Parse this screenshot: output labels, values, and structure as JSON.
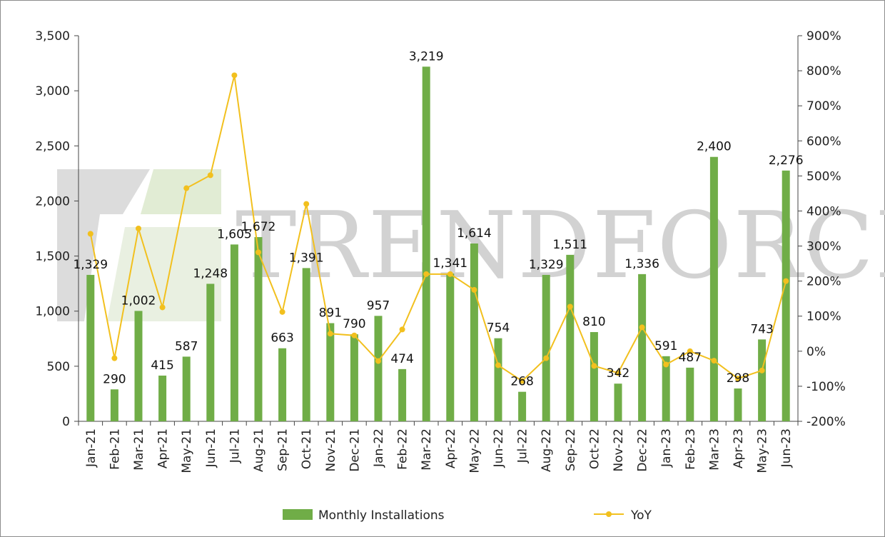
{
  "chart_data": {
    "type": "bar+line",
    "title": "",
    "categories": [
      "Jan-21",
      "Feb-21",
      "Mar-21",
      "Apr-21",
      "May-21",
      "Jun-21",
      "Jul-21",
      "Aug-21",
      "Sep-21",
      "Oct-21",
      "Nov-21",
      "Dec-21",
      "Jan-22",
      "Feb-22",
      "Mar-22",
      "Apr-22",
      "May-22",
      "Jun-22",
      "Jul-22",
      "Aug-22",
      "Sep-22",
      "Oct-22",
      "Nov-22",
      "Dec-22",
      "Jan-23",
      "Feb-23",
      "Mar-23",
      "Apr-23",
      "May-23",
      "Jun-23"
    ],
    "series": [
      {
        "name": "Monthly Installations",
        "type": "bar",
        "axis": "left",
        "color": "#70ad47",
        "values": [
          1329,
          290,
          1002,
          415,
          587,
          1248,
          1605,
          1672,
          663,
          1391,
          891,
          790,
          957,
          474,
          3219,
          1341,
          1614,
          754,
          268,
          1329,
          1511,
          810,
          342,
          1336,
          591,
          487,
          2400,
          298,
          743,
          2276
        ],
        "labels": [
          "1,329",
          "290",
          "1,002",
          "415",
          "587",
          "1,248",
          "1,605",
          "1,672",
          "663",
          "1,391",
          "891",
          "790",
          "957",
          "474",
          "3,219",
          "1,341",
          "1,614",
          "754",
          "268",
          "1,329",
          "1,511",
          "810",
          "342",
          "1,336",
          "591",
          "487",
          "2,400",
          "298",
          "743",
          "2,276"
        ]
      },
      {
        "name": "YoY",
        "type": "line",
        "axis": "right",
        "color": "#f2c01e",
        "values": [
          335,
          -20,
          350,
          125,
          465,
          502,
          787,
          282,
          112,
          420,
          50,
          45,
          -28,
          62,
          220,
          220,
          175,
          -40,
          -85,
          -20,
          127,
          -42,
          -62,
          68,
          -38,
          0,
          -27,
          -78,
          -55,
          200
        ]
      }
    ],
    "y_left": {
      "min": 0,
      "max": 3500,
      "step": 500,
      "ticks": [
        "0",
        "500",
        "1,000",
        "1,500",
        "2,000",
        "2,500",
        "3,000",
        "3,500"
      ]
    },
    "y_right": {
      "min": -200,
      "max": 900,
      "step": 100,
      "ticks": [
        "-200%",
        "-100%",
        "0%",
        "100%",
        "200%",
        "300%",
        "400%",
        "500%",
        "600%",
        "700%",
        "800%",
        "900%"
      ]
    },
    "grid": false,
    "legend": {
      "position": "bottom",
      "items": [
        {
          "label": "Monthly Installations",
          "kind": "bar"
        },
        {
          "label": "YoY",
          "kind": "line"
        }
      ]
    }
  },
  "watermark": {
    "text": "TRENDFORCE"
  }
}
